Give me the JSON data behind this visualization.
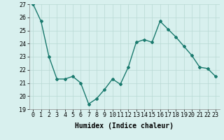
{
  "x": [
    0,
    1,
    2,
    3,
    4,
    5,
    6,
    7,
    8,
    9,
    10,
    11,
    12,
    13,
    14,
    15,
    16,
    17,
    18,
    19,
    20,
    21,
    22,
    23
  ],
  "y": [
    27,
    25.7,
    23.0,
    21.3,
    21.3,
    21.5,
    21.0,
    19.4,
    19.8,
    20.5,
    21.3,
    20.9,
    22.2,
    24.1,
    24.3,
    24.1,
    25.7,
    25.1,
    24.5,
    23.8,
    23.1,
    22.2,
    22.1,
    21.5
  ],
  "line_color": "#1a7a6e",
  "marker": "D",
  "marker_size": 2,
  "bg_color": "#d8f0ee",
  "grid_color": "#b8d8d4",
  "xlabel": "Humidex (Indice chaleur)",
  "ylim": [
    19,
    27
  ],
  "yticks": [
    19,
    20,
    21,
    22,
    23,
    24,
    25,
    26,
    27
  ],
  "xticks": [
    0,
    1,
    2,
    3,
    4,
    5,
    6,
    7,
    8,
    9,
    10,
    11,
    12,
    13,
    14,
    15,
    16,
    17,
    18,
    19,
    20,
    21,
    22,
    23
  ],
  "xlabel_fontsize": 7,
  "tick_fontsize": 6,
  "line_width": 1.0
}
